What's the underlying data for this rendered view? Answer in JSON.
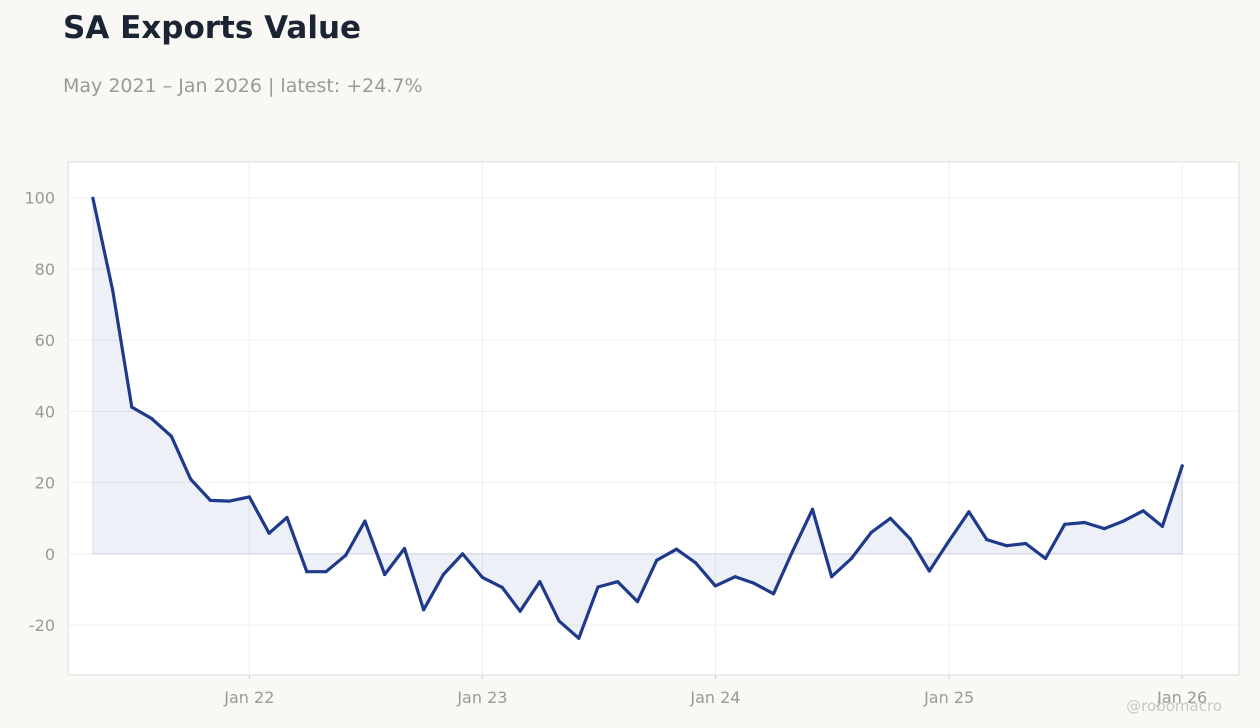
{
  "header": {
    "title": "SA Exports Value",
    "subtitle": "May 2021 – Jan 2026 | latest: +24.7%"
  },
  "watermark": "@robomacro",
  "chart_data": {
    "type": "area",
    "title": "SA Exports Value",
    "subtitle": "May 2021 – Jan 2026 | latest: +24.7%",
    "xlabel": "",
    "ylabel": "",
    "ylim": [
      -34,
      110
    ],
    "xlim": [
      "2021-03-23",
      "2026-03-31"
    ],
    "grid": true,
    "legend": "none",
    "y_ticks": [
      100,
      80,
      60,
      40,
      20,
      0,
      -20
    ],
    "x_ticks": [
      {
        "date": "2022-01-01",
        "label": "Jan 22"
      },
      {
        "date": "2023-01-01",
        "label": "Jan 23"
      },
      {
        "date": "2024-01-01",
        "label": "Jan 24"
      },
      {
        "date": "2025-01-01",
        "label": "Jan 25"
      },
      {
        "date": "2026-01-01",
        "label": "Jan 26"
      }
    ],
    "line_color": "#1f3a8a",
    "fill_color": "#1f3a8a",
    "series": [
      {
        "name": "",
        "x": [
          "2021-05-01",
          "2021-06-01",
          "2021-07-01",
          "2021-08-01",
          "2021-09-01",
          "2021-10-01",
          "2021-11-01",
          "2021-12-01",
          "2022-01-01",
          "2022-02-01",
          "2022-03-01",
          "2022-04-01",
          "2022-05-01",
          "2022-06-01",
          "2022-07-01",
          "2022-08-01",
          "2022-09-01",
          "2022-10-01",
          "2022-11-01",
          "2022-12-01",
          "2023-01-01",
          "2023-02-01",
          "2023-03-01",
          "2023-04-01",
          "2023-05-01",
          "2023-06-01",
          "2023-07-01",
          "2023-08-01",
          "2023-09-01",
          "2023-10-01",
          "2023-11-01",
          "2023-12-01",
          "2024-01-01",
          "2024-02-01",
          "2024-03-01",
          "2024-04-01",
          "2024-05-01",
          "2024-06-01",
          "2024-07-01",
          "2024-08-01",
          "2024-09-01",
          "2024-10-01",
          "2024-11-01",
          "2024-12-01",
          "2025-01-01",
          "2025-02-01",
          "2025-03-01",
          "2025-04-01",
          "2025-05-01",
          "2025-06-01",
          "2025-07-01",
          "2025-08-01",
          "2025-09-01",
          "2025-10-01",
          "2025-11-01",
          "2025-12-01",
          "2026-01-01"
        ],
        "values": [
          99.8,
          74,
          41.2,
          38,
          33,
          21,
          15,
          14.8,
          16,
          5.8,
          10.2,
          -5,
          -5,
          -0.4,
          9.2,
          -5.8,
          1.5,
          -15.7,
          -5.8,
          0,
          -6.6,
          -9.4,
          -16.1,
          -7.8,
          -18.8,
          -23.7,
          -9.3,
          -7.8,
          -13.4,
          -1.8,
          1.3,
          -2.5,
          -9,
          -6.4,
          -8.2,
          -11.2,
          0.8,
          12.5,
          -6.4,
          -1.3,
          6,
          10,
          4.2,
          -4.8,
          3.7,
          11.8,
          4,
          2.3,
          2.9,
          -1.3,
          8.3,
          8.8,
          7.1,
          9.2,
          12.1,
          7.7,
          24.7
        ]
      }
    ]
  }
}
